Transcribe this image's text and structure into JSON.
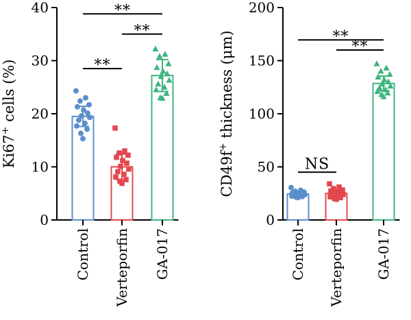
{
  "chart_data": [
    {
      "type": "bar",
      "categories": [
        "Control",
        "Verteporfin",
        "GA-017"
      ],
      "ylabel": "Ki67+ cells (%)",
      "ylabel_parts": {
        "base": "Ki67",
        "sup": "+",
        "rest": " cells (%)"
      },
      "ylim": [
        0,
        40
      ],
      "yticks": [
        "0",
        "10",
        "20",
        "30",
        "40"
      ],
      "series": [
        {
          "category": "Control",
          "color": "#5b8fcc",
          "marker": "circle",
          "mean": 19.5,
          "error": 1.9,
          "points": [
            24.3,
            23.0,
            22.4,
            21.7,
            21.3,
            20.7,
            20.1,
            19.6,
            19.3,
            18.8,
            18.2,
            17.7,
            17.1,
            16.3,
            15.3
          ]
        },
        {
          "category": "Verteporfin",
          "color": "#e2474d",
          "marker": "square",
          "mean": 10.0,
          "error": 2.4,
          "points": [
            17.3,
            13.0,
            12.6,
            12.2,
            11.8,
            11.2,
            10.7,
            10.1,
            9.6,
            9.1,
            8.6,
            8.1,
            7.6,
            7.3,
            6.9
          ]
        },
        {
          "category": "GA-017",
          "color": "#3db57e",
          "marker": "triangle",
          "mean": 27.2,
          "error": 3.0,
          "points": [
            32.2,
            31.2,
            30.8,
            29.4,
            28.7,
            28.0,
            27.5,
            27.0,
            26.3,
            25.6,
            25.0,
            24.5,
            23.8,
            23.0,
            22.9
          ]
        }
      ],
      "significance": [
        {
          "from": 0,
          "to": 1,
          "label": "**",
          "y": 28.5
        },
        {
          "from": 1,
          "to": 2,
          "label": "**",
          "y": 35.0
        },
        {
          "from": 0,
          "to": 2,
          "label": "**",
          "y": 38.8
        }
      ]
    },
    {
      "type": "bar",
      "categories": [
        "Control",
        "Verteporfin",
        "GA-017"
      ],
      "ylabel": "CD49f+ thickness (μm)",
      "ylabel_parts": {
        "base": "CD49f",
        "sup": "+",
        "rest": " thickness (μm)"
      },
      "ylim": [
        0,
        200
      ],
      "yticks": [
        "0",
        "50",
        "100",
        "150",
        "200"
      ],
      "series": [
        {
          "category": "Control",
          "color": "#5b8fcc",
          "marker": "circle",
          "mean": 24.5,
          "error": 1.5,
          "points": [
            30.5,
            28.0,
            27.0,
            26.2,
            25.6,
            25.0,
            24.6,
            24.2,
            23.8,
            23.4,
            23.0,
            22.5,
            22.0,
            21.5,
            21.0
          ]
        },
        {
          "category": "Verteporfin",
          "color": "#e2474d",
          "marker": "square",
          "mean": 25.0,
          "error": 3.0,
          "points": [
            34.0,
            31.0,
            29.5,
            28.3,
            27.2,
            26.3,
            25.5,
            24.8,
            24.0,
            23.3,
            22.5,
            21.8,
            21.0,
            20.3,
            19.5
          ]
        },
        {
          "category": "GA-017",
          "color": "#3db57e",
          "marker": "triangle",
          "mean": 128.5,
          "error": 7.0,
          "points": [
            147.0,
            143.0,
            140.0,
            137.0,
            134.5,
            132.0,
            130.0,
            128.0,
            126.0,
            124.5,
            122.5,
            121.0,
            119.5,
            118.0,
            116.0
          ]
        }
      ],
      "significance": [
        {
          "from": 0,
          "to": 1,
          "label": "NS",
          "y": 45.0
        },
        {
          "from": 1,
          "to": 2,
          "label": "**",
          "y": 160.0
        },
        {
          "from": 0,
          "to": 2,
          "label": "**",
          "y": 169.5
        }
      ]
    }
  ]
}
